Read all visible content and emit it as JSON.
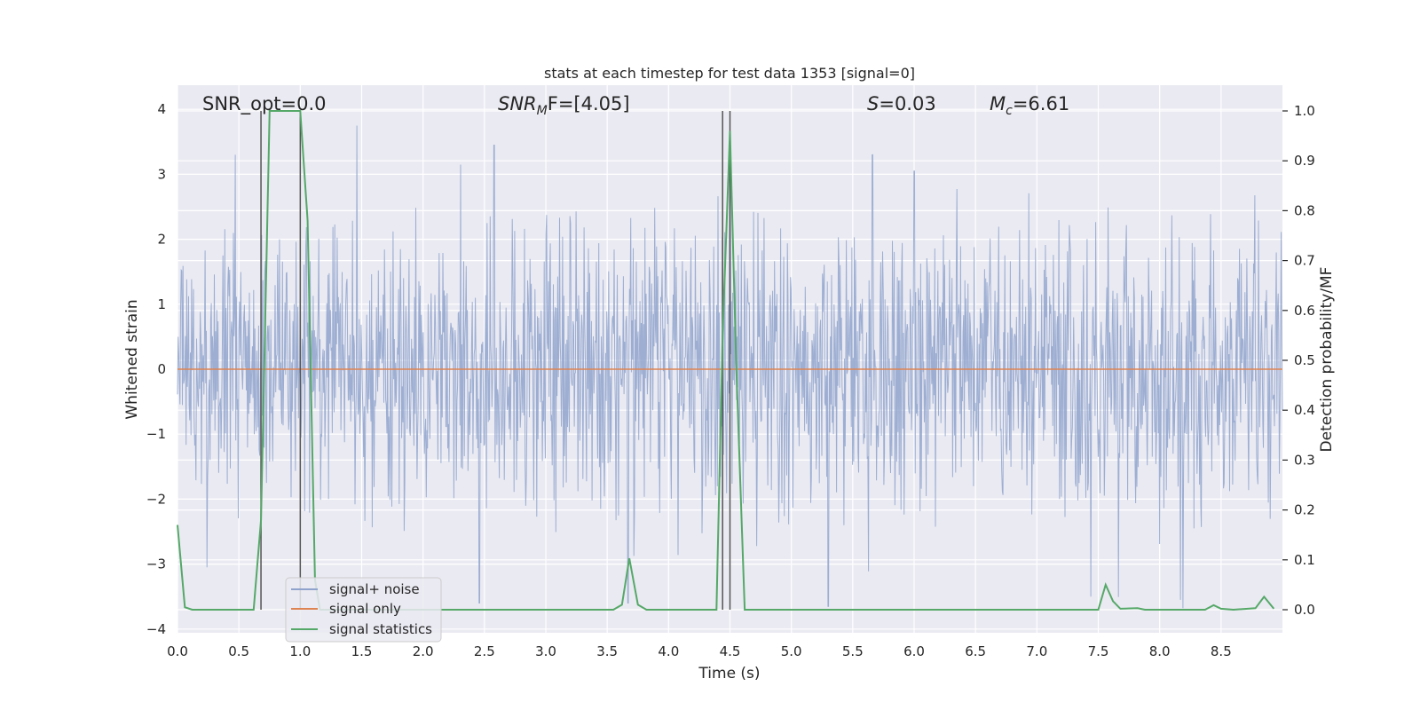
{
  "chart_data": {
    "type": "line",
    "title": "stats at each timestep for test data 1353 [signal=0]",
    "xlabel": "Time (s)",
    "ylabel_left": "Whitened strain",
    "ylabel_right": "Detection probability/MF",
    "xlim": [
      0.0,
      9.0
    ],
    "ylim_left": [
      -4.0,
      4.3
    ],
    "ylim_right": [
      -0.045,
      1.0
    ],
    "x_ticks": [
      0.0,
      0.5,
      1.0,
      1.5,
      2.0,
      2.5,
      3.0,
      3.5,
      4.0,
      4.5,
      5.0,
      5.5,
      6.0,
      6.5,
      7.0,
      7.5,
      8.0,
      8.5
    ],
    "x_tick_labels": [
      "0.0",
      "0.5",
      "1.0",
      "1.5",
      "2.0",
      "2.5",
      "3.0",
      "3.5",
      "4.0",
      "4.5",
      "5.0",
      "5.5",
      "6.0",
      "6.5",
      "7.0",
      "7.5",
      "8.0",
      "8.5"
    ],
    "y_ticks_left": [
      4,
      3,
      2,
      1,
      0,
      -1,
      -2,
      -3,
      -4
    ],
    "y_tick_labels_left": [
      "4",
      "3",
      "2",
      "1",
      "0",
      "−1",
      "−2",
      "−3",
      "−4"
    ],
    "y_ticks_right": [
      1.0,
      0.9,
      0.8,
      0.7,
      0.6,
      0.5,
      0.4,
      0.3,
      0.2,
      0.1,
      0.0
    ],
    "y_tick_labels_right": [
      "1.0",
      "0.9",
      "0.8",
      "0.7",
      "0.6",
      "0.5",
      "0.4",
      "0.3",
      "0.2",
      "0.1",
      "0.0"
    ],
    "grid": true,
    "legend_placement": "lower-left",
    "annotations": {
      "snr_opt": "SNR_opt=0.0",
      "snr_mf_prefix": "SNR",
      "snr_mf_sub": "M",
      "snr_mf_rest": "F=[4.05]",
      "s_var": "S",
      "s_value": "=0.03",
      "mc_var": "M",
      "mc_sub": "c",
      "mc_value": "=6.61"
    },
    "vertical_lines_x": [
      0.68,
      1.0,
      4.44,
      4.5
    ],
    "series": [
      {
        "name": "signal+ noise",
        "axis": "left",
        "color": "#8fa3cc",
        "envelope": {
          "typical_abs": 1.5,
          "max_abs": 4.0,
          "peaks": [
            [
              0.47,
              3.3
            ],
            [
              1.46,
              3.75
            ],
            [
              2.58,
              3.45
            ],
            [
              3.67,
              -3.6
            ],
            [
              4.5,
              3.6
            ],
            [
              5.3,
              -3.65
            ],
            [
              5.66,
              3.3
            ],
            [
              6.0,
              3.05
            ],
            [
              7.44,
              -3.5
            ],
            [
              8.17,
              -3.55
            ],
            [
              0.24,
              -3.05
            ],
            [
              2.46,
              -3.6
            ]
          ]
        }
      },
      {
        "name": "signal only",
        "axis": "left",
        "color": "#dd8452",
        "x": [
          0.0,
          9.0
        ],
        "y": [
          0.0,
          0.0
        ]
      },
      {
        "name": "signal statistics",
        "axis": "right",
        "color": "#55a868",
        "x": [
          0.0,
          0.06,
          0.12,
          0.25,
          0.5,
          0.62,
          0.68,
          0.75,
          1.0,
          1.06,
          1.12,
          1.16,
          1.25,
          2.0,
          3.0,
          3.55,
          3.62,
          3.68,
          3.75,
          3.82,
          4.0,
          4.39,
          4.44,
          4.5,
          4.55,
          4.62,
          5.0,
          6.0,
          7.0,
          7.5,
          7.56,
          7.62,
          7.68,
          7.82,
          7.88,
          8.0,
          8.37,
          8.44,
          8.5,
          8.6,
          8.78,
          8.85,
          8.93
        ],
        "y": [
          0.17,
          0.005,
          0.0,
          0.0,
          0.0,
          0.0,
          0.18,
          1.0,
          1.0,
          0.78,
          0.06,
          0.0,
          0.0,
          0.0,
          0.0,
          0.0,
          0.01,
          0.103,
          0.01,
          0.0,
          0.0,
          0.0,
          0.55,
          0.96,
          0.5,
          0.0,
          0.0,
          0.0,
          0.0,
          0.0,
          0.05,
          0.017,
          0.002,
          0.003,
          0.0,
          0.0,
          0.0,
          0.009,
          0.002,
          0.0,
          0.003,
          0.026,
          0.002
        ]
      }
    ]
  }
}
